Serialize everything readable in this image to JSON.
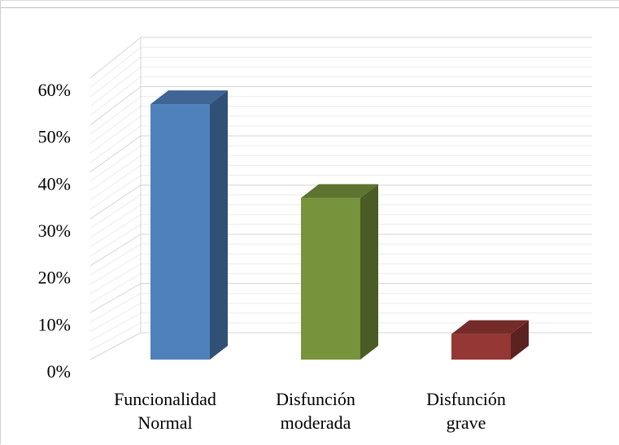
{
  "chart_data": {
    "type": "bar",
    "style": "3d-column",
    "categories": [
      [
        "Funcionalidad",
        "Normal"
      ],
      [
        "Disfunción",
        "moderada"
      ],
      [
        "Disfunción",
        "grave"
      ]
    ],
    "values": [
      56,
      36,
      7
    ],
    "colors": [
      "#4F81BD",
      "#77933C",
      "#953735"
    ],
    "ylim": [
      0,
      60
    ],
    "yticks": [
      "0%",
      "10%",
      "20%",
      "30%",
      "40%",
      "50%",
      "60%"
    ],
    "grid": true,
    "legend": "none"
  }
}
